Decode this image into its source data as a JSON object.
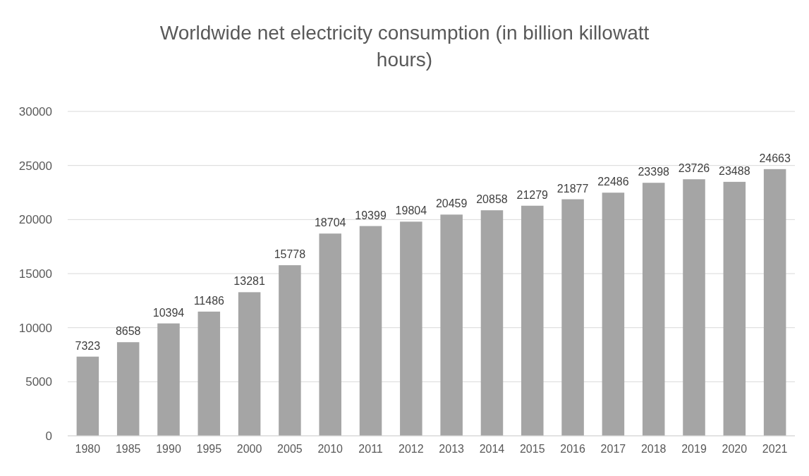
{
  "chart_data": {
    "type": "bar",
    "title": "Worldwide net electricity consumption (in billion killowatt hours)",
    "categories": [
      "1980",
      "1985",
      "1990",
      "1995",
      "2000",
      "2005",
      "2010",
      "2011",
      "2012",
      "2013",
      "2014",
      "2015",
      "2016",
      "2017",
      "2018",
      "2019",
      "2020",
      "2021"
    ],
    "values": [
      7323,
      8658,
      10394,
      11486,
      13281,
      15778,
      18704,
      19399,
      19804,
      20459,
      20858,
      21279,
      21877,
      22486,
      23398,
      23726,
      23488,
      24663
    ],
    "color": "#a5a5a5",
    "ylim": [
      0,
      30000
    ],
    "yticks": [
      0,
      5000,
      10000,
      15000,
      20000,
      25000,
      30000
    ],
    "grid": "y",
    "data_labels": true
  }
}
